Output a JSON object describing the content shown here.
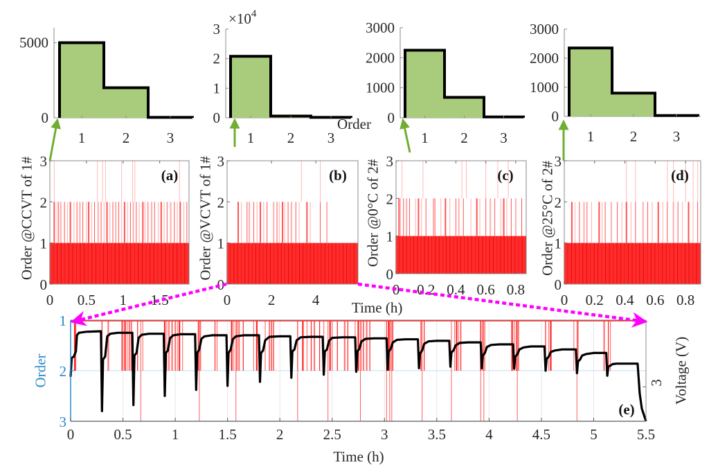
{
  "figure": {
    "colors": {
      "histogram_fill": "#a9cc7c",
      "histogram_edge": "#000000",
      "order_bars": "#ff1a1a",
      "order_axis_blue": "#2a88c8",
      "voltage_line": "#000000",
      "arrow_green": "#70ad32",
      "arrow_magenta": "#ff00ff"
    },
    "shared_labels": {
      "histogram_xlabel": "Order",
      "time_xlabel": "Time (h)"
    }
  },
  "chart_data": [
    {
      "id": "hist-a",
      "type": "bar",
      "title": "",
      "xlabel": "",
      "ylabel": "",
      "categories": [
        "1",
        "2",
        "3"
      ],
      "values": [
        5000,
        2000,
        30
      ],
      "ylim": [
        0,
        6000
      ],
      "yticks": [
        0,
        5000
      ],
      "ytick_labels": [
        "0",
        "5000"
      ],
      "exponent_label": ""
    },
    {
      "id": "hist-b",
      "type": "bar",
      "title": "",
      "xlabel": "Order",
      "ylabel": "",
      "categories": [
        "1",
        "2",
        "3"
      ],
      "values": [
        20800,
        600,
        150
      ],
      "ylim": [
        0,
        30000
      ],
      "yticks": [
        0,
        10000,
        20000,
        30000
      ],
      "ytick_labels": [
        "0",
        "1",
        "2",
        "3"
      ],
      "exponent_label": "×10^4"
    },
    {
      "id": "hist-c",
      "type": "bar",
      "title": "",
      "xlabel": "",
      "ylabel": "",
      "categories": [
        "1",
        "2",
        "3"
      ],
      "values": [
        2250,
        680,
        30
      ],
      "ylim": [
        0,
        3000
      ],
      "yticks": [
        0,
        1000,
        2000,
        3000
      ],
      "ytick_labels": [
        "0",
        "1000",
        "2000",
        "3000"
      ],
      "exponent_label": ""
    },
    {
      "id": "hist-d",
      "type": "bar",
      "title": "",
      "xlabel": "",
      "ylabel": "",
      "categories": [
        "1",
        "2",
        "3"
      ],
      "values": [
        2350,
        800,
        30
      ],
      "ylim": [
        0,
        3000
      ],
      "yticks": [
        0,
        1000,
        2000,
        3000
      ],
      "ytick_labels": [
        "0",
        "1000",
        "2000",
        "3000"
      ],
      "exponent_label": ""
    },
    {
      "id": "order-a",
      "type": "bar",
      "panel_label": "(a)",
      "title": "",
      "xlabel": "",
      "ylabel": "Order @CCVT of 1#",
      "xlim": [
        0,
        1.9
      ],
      "ylim": [
        0,
        3
      ],
      "xticks": [
        0,
        0.5,
        1,
        1.5
      ],
      "xtick_labels": [
        "0",
        "0.5",
        "1",
        "1.5"
      ],
      "yticks": [
        0,
        1,
        2,
        3
      ],
      "ytick_labels": [
        "0",
        "1",
        "2",
        "3"
      ],
      "description": "Dense vertical order markers: order 1 at nearly all time steps, frequent order 2, occasional order 3",
      "order2_times": [
        0.06,
        0.1,
        0.12,
        0.15,
        0.2,
        0.24,
        0.28,
        0.33,
        0.37,
        0.41,
        0.45,
        0.5,
        0.53,
        0.57,
        0.61,
        0.66,
        0.7,
        0.74,
        0.78,
        0.82,
        0.86,
        0.9,
        0.94,
        0.98,
        1.02,
        1.06,
        1.1,
        1.14,
        1.18,
        1.22,
        1.27,
        1.3,
        1.34,
        1.39,
        1.43,
        1.48,
        1.52,
        1.56,
        1.6,
        1.65,
        1.7,
        1.74,
        1.78,
        1.83,
        1.87
      ],
      "order3_times": [
        0.06,
        0.65,
        0.72,
        0.76,
        0.98,
        1.13,
        1.16,
        1.77
      ]
    },
    {
      "id": "order-b",
      "type": "bar",
      "panel_label": "(b)",
      "title": "",
      "xlabel": "Time (h)",
      "ylabel": "Order @VCVT of 1#",
      "xlim": [
        0,
        5.9
      ],
      "ylim": [
        0,
        3
      ],
      "xticks": [
        0,
        2,
        4
      ],
      "xtick_labels": [
        "0",
        "2",
        "4"
      ],
      "yticks": [
        0,
        1,
        2,
        3
      ],
      "ytick_labels": [
        "0",
        "1",
        "2",
        "3"
      ],
      "description": "Order 1 nearly everywhere, sparse order 2 markers, two order 3 markers",
      "order2_times": [
        0.5,
        0.65,
        0.9,
        1.0,
        1.2,
        1.35,
        1.5,
        1.65,
        1.8,
        2.1,
        2.25,
        2.35,
        2.5,
        2.6,
        2.75,
        2.9,
        3.1,
        3.25,
        3.6,
        3.75,
        4.2,
        4.5
      ],
      "order3_times": [
        3.35,
        4.2
      ]
    },
    {
      "id": "order-c",
      "type": "bar",
      "panel_label": "(c)",
      "title": "",
      "xlabel": "",
      "ylabel": "Order @0°C of 2#",
      "xlim": [
        0,
        0.87
      ],
      "ylim": [
        0,
        3
      ],
      "xticks": [
        0,
        0.2,
        0.4,
        0.6,
        0.8
      ],
      "xtick_labels": [
        "0",
        "0.2",
        "0.4",
        "0.6",
        "0.8"
      ],
      "yticks": [
        0,
        1,
        2,
        3
      ],
      "ytick_labels": [
        "0",
        "1",
        "2",
        "3"
      ],
      "description": "Order 1 everywhere, frequent order 2 clusters, occasional order 3",
      "order2_times": [
        0.02,
        0.03,
        0.05,
        0.07,
        0.09,
        0.13,
        0.15,
        0.17,
        0.2,
        0.25,
        0.26,
        0.3,
        0.33,
        0.36,
        0.4,
        0.42,
        0.45,
        0.5,
        0.54,
        0.56,
        0.6,
        0.63,
        0.66,
        0.7,
        0.72,
        0.74,
        0.77,
        0.8,
        0.84
      ],
      "order3_times": [
        0.04,
        0.18,
        0.44,
        0.47,
        0.6,
        0.68,
        0.75
      ]
    },
    {
      "id": "order-d",
      "type": "bar",
      "panel_label": "(d)",
      "title": "",
      "xlabel": "",
      "ylabel": "Order @25°C of 2#",
      "xlim": [
        0,
        0.9
      ],
      "ylim": [
        0,
        3
      ],
      "xticks": [
        0,
        0.2,
        0.4,
        0.6,
        0.8
      ],
      "xtick_labels": [
        "0",
        "0.2",
        "0.4",
        "0.6",
        "0.8"
      ],
      "yticks": [
        0,
        1,
        2,
        3
      ],
      "ytick_labels": [
        "0",
        "1",
        "2",
        "3"
      ],
      "description": "Order 1 everywhere, frequent order 2 clusters, occasional order 3",
      "order2_times": [
        0.05,
        0.07,
        0.1,
        0.13,
        0.15,
        0.18,
        0.23,
        0.25,
        0.27,
        0.31,
        0.35,
        0.38,
        0.41,
        0.44,
        0.47,
        0.52,
        0.55,
        0.58,
        0.62,
        0.65,
        0.68,
        0.72,
        0.75,
        0.78,
        0.82,
        0.85,
        0.88
      ],
      "order3_times": [
        0.41,
        0.47,
        0.68,
        0.72,
        0.8,
        0.85,
        0.88
      ]
    },
    {
      "id": "order-voltage-e",
      "type": "line",
      "panel_label": "(e)",
      "title": "",
      "xlabel": "Time (h)",
      "ylabel": "Order",
      "ylabel_right": "Voltage (V)",
      "xlim": [
        0,
        5.5
      ],
      "ylim": [
        1,
        3
      ],
      "y_reversed": true,
      "xticks": [
        0,
        0.5,
        1,
        1.5,
        2,
        2.5,
        3,
        3.5,
        4,
        4.5,
        5,
        5.5
      ],
      "xtick_labels": [
        "0",
        "0.5",
        "1",
        "1.5",
        "2",
        "2.5",
        "3",
        "3.5",
        "4",
        "4.5",
        "5",
        "5.5"
      ],
      "yticks": [
        1,
        2,
        3
      ],
      "ytick_labels": [
        "1",
        "2",
        "3"
      ],
      "right_yticks": [
        3
      ],
      "right_ytick_labels": [
        "3"
      ],
      "order2_times": [
        0.04,
        0.05,
        0.3,
        0.36,
        0.49,
        0.5,
        0.52,
        0.54,
        0.56,
        0.58,
        0.64,
        0.69,
        0.9,
        0.92,
        0.94,
        0.97,
        1.0,
        1.02,
        1.04,
        1.07,
        1.22,
        1.24,
        1.38,
        1.4,
        1.54,
        1.56,
        1.59,
        1.61,
        1.65,
        1.75,
        1.78,
        1.86,
        1.9,
        1.92,
        1.94,
        2.17,
        2.22,
        2.26,
        2.3,
        2.33,
        2.38,
        2.42,
        2.48,
        2.5,
        2.55,
        2.62,
        2.65,
        2.72,
        2.75,
        2.78,
        2.8,
        2.83,
        2.86,
        3.02,
        3.04,
        3.06,
        3.08,
        3.35,
        3.38,
        3.67,
        3.69,
        3.71,
        3.73,
        3.92,
        3.94,
        3.96,
        4.22,
        4.24,
        4.26,
        4.28,
        4.54,
        4.57,
        4.59,
        4.81,
        4.85,
        5.1,
        5.14,
        5.16
      ],
      "order3_times": [
        0.67,
        1.23,
        1.58,
        2.17,
        2.46,
        2.77,
        3.02,
        3.05,
        3.07,
        3.36,
        3.64,
        3.92,
        3.95,
        4.27,
        4.84
      ],
      "voltage_series": {
        "name": "Voltage",
        "x": [
          0,
          0.01,
          0.03,
          0.05,
          0.06,
          0.08,
          0.15,
          0.28,
          0.29,
          0.3,
          0.31,
          0.33,
          0.35,
          0.38,
          0.45,
          0.59,
          0.6,
          0.61,
          0.63,
          0.65,
          0.68,
          0.75,
          0.89,
          0.9,
          0.91,
          0.93,
          0.95,
          0.98,
          1.05,
          1.19,
          1.2,
          1.21,
          1.23,
          1.25,
          1.28,
          1.35,
          1.49,
          1.5,
          1.51,
          1.53,
          1.55,
          1.58,
          1.65,
          1.8,
          1.81,
          1.82,
          1.84,
          1.86,
          1.9,
          2.0,
          2.1,
          2.11,
          2.12,
          2.14,
          2.16,
          2.2,
          2.3,
          2.41,
          2.42,
          2.43,
          2.45,
          2.47,
          2.5,
          2.6,
          2.72,
          2.73,
          2.74,
          2.76,
          2.78,
          2.82,
          2.9,
          3.02,
          3.03,
          3.04,
          3.06,
          3.08,
          3.12,
          3.2,
          3.32,
          3.33,
          3.34,
          3.36,
          3.38,
          3.42,
          3.5,
          3.62,
          3.63,
          3.64,
          3.66,
          3.68,
          3.72,
          3.8,
          3.92,
          3.93,
          3.94,
          3.96,
          3.98,
          4.02,
          4.1,
          4.23,
          4.24,
          4.25,
          4.27,
          4.29,
          4.33,
          4.4,
          4.53,
          4.54,
          4.55,
          4.57,
          4.59,
          4.63,
          4.7,
          4.83,
          4.84,
          4.85,
          4.87,
          4.89,
          4.93,
          5.0,
          5.12,
          5.13,
          5.14,
          5.16,
          5.18,
          5.22,
          5.3,
          5.42,
          5.44,
          5.46,
          5.5
        ],
        "y_order_axis": [
          2.12,
          1.75,
          1.72,
          1.62,
          1.3,
          1.25,
          1.23,
          1.22,
          1.22,
          2.8,
          1.78,
          1.72,
          1.32,
          1.27,
          1.25,
          1.25,
          2.68,
          1.7,
          1.65,
          1.35,
          1.29,
          1.27,
          1.27,
          2.5,
          1.65,
          1.6,
          1.36,
          1.3,
          1.28,
          1.28,
          2.38,
          1.65,
          1.58,
          1.37,
          1.32,
          1.3,
          1.3,
          2.3,
          1.65,
          1.58,
          1.38,
          1.32,
          1.3,
          1.3,
          2.22,
          1.65,
          1.6,
          1.4,
          1.33,
          1.32,
          1.32,
          2.14,
          1.62,
          1.58,
          1.4,
          1.34,
          1.33,
          1.33,
          2.08,
          1.62,
          1.58,
          1.41,
          1.35,
          1.34,
          1.34,
          2.02,
          1.62,
          1.57,
          1.42,
          1.37,
          1.36,
          1.36,
          1.98,
          1.62,
          1.57,
          1.44,
          1.39,
          1.38,
          1.38,
          1.95,
          1.66,
          1.6,
          1.47,
          1.42,
          1.41,
          1.41,
          1.92,
          1.64,
          1.6,
          1.5,
          1.45,
          1.44,
          1.44,
          1.95,
          1.7,
          1.65,
          1.53,
          1.49,
          1.48,
          1.48,
          1.96,
          1.72,
          1.68,
          1.58,
          1.54,
          1.52,
          1.52,
          2.0,
          1.77,
          1.72,
          1.63,
          1.6,
          1.58,
          1.58,
          2.05,
          1.82,
          1.78,
          1.7,
          1.67,
          1.65,
          1.65,
          2.1,
          1.92,
          1.9,
          1.87,
          1.86,
          1.86,
          1.86,
          2.45,
          2.75,
          3.0
        ]
      }
    }
  ]
}
